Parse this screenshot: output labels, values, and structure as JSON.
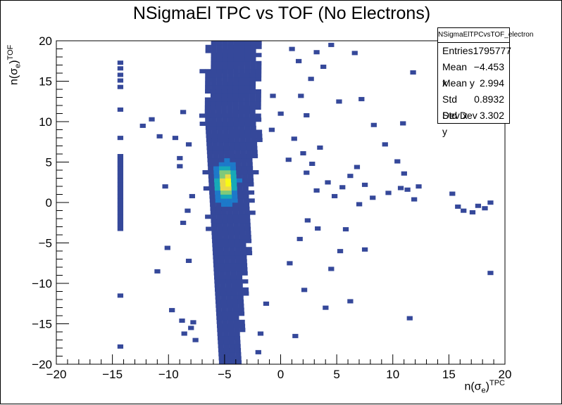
{
  "title": "NSigmaEl TPC vs TOF (No Electrons)",
  "xlabel": "n(σ_e)^TPC",
  "ylabel": "n(σ_e)^TOF",
  "stats": {
    "name": "NSigmaElTPCvsTOF_electron",
    "rows": [
      {
        "label": "Entries",
        "value": "1795777"
      },
      {
        "label": "Mean x",
        "value": "−4.453"
      },
      {
        "label": "Mean y",
        "value": "2.994"
      },
      {
        "label": "Std Dev x",
        "value": "0.8932"
      },
      {
        "label": "Std Dev y",
        "value": "3.302"
      }
    ]
  },
  "chart_data": {
    "type": "heatmap",
    "title": "NSigmaEl TPC vs TOF (No Electrons)",
    "xlabel": "n(σ_e)^TPC",
    "ylabel": "n(σ_e)^TOF",
    "xlim": [
      -20,
      20
    ],
    "ylim": [
      -20,
      20
    ],
    "x_ticks": [
      "−20",
      "−15",
      "−10",
      "−5",
      "0",
      "5",
      "10",
      "15",
      "20"
    ],
    "y_ticks": [
      "−20",
      "−15",
      "−10",
      "−5",
      "0",
      "5",
      "10",
      "15",
      "20"
    ],
    "colormap": [
      "#35489a",
      "#1d79c9",
      "#17a9b8",
      "#7fc97a",
      "#e9d84a",
      "#f9fa14"
    ],
    "entries": 1795777,
    "mean_x": -4.453,
    "mean_y": 2.994,
    "std_x": 0.8932,
    "std_y": 3.302,
    "core": {
      "x": -4.85,
      "y": 2.4,
      "sx": 0.55,
      "sy": 1.4
    },
    "band": {
      "xmin": -7.0,
      "xmax": -2.3,
      "ymin": -20,
      "ymax": 20
    },
    "isolated_column": {
      "x": -14.3,
      "ymin": -3.5,
      "ymax": 5.8,
      "width": 0.5
    },
    "outliers": [
      [
        -14.3,
        17.3
      ],
      [
        -14.3,
        16.6
      ],
      [
        -14.3,
        15.8
      ],
      [
        -14.3,
        15.1
      ],
      [
        -14.3,
        14.3
      ],
      [
        -14.3,
        11.5
      ],
      [
        -14.3,
        8.0
      ],
      [
        -14.3,
        -11.5
      ],
      [
        -14.3,
        -17.8
      ],
      [
        -10.8,
        8.2
      ],
      [
        -12.3,
        9.5
      ],
      [
        -9.4,
        8.0
      ],
      [
        -8.2,
        7.2
      ],
      [
        -9.0,
        5.5
      ],
      [
        -10.3,
        2.0
      ],
      [
        -11.0,
        -8.5
      ],
      [
        -9.7,
        -13.3
      ],
      [
        -8.8,
        -14.6
      ],
      [
        -8.0,
        -15.5
      ],
      [
        -7.8,
        -14.8
      ],
      [
        -8.2,
        -7.2
      ],
      [
        -8.7,
        -2.5
      ],
      [
        -9.0,
        4.5
      ],
      [
        -7.9,
        0.8
      ],
      [
        -8.3,
        -1.0
      ],
      [
        -10.1,
        -5.6
      ],
      [
        -8.6,
        -16.2
      ],
      [
        -7.6,
        -17.0
      ],
      [
        -11.5,
        10.3
      ],
      [
        -8.7,
        11.2
      ],
      [
        -0.7,
        13.2
      ],
      [
        0.0,
        11.0
      ],
      [
        -0.8,
        9.0
      ],
      [
        1.2,
        7.9
      ],
      [
        2.0,
        6.1
      ],
      [
        2.8,
        4.8
      ],
      [
        3.5,
        6.8
      ],
      [
        0.7,
        5.3
      ],
      [
        2.3,
        3.7
      ],
      [
        4.2,
        2.5
      ],
      [
        3.2,
        1.5
      ],
      [
        4.8,
        0.8
      ],
      [
        5.5,
        1.9
      ],
      [
        6.2,
        3.3
      ],
      [
        7.5,
        2.2
      ],
      [
        8.2,
        0.6
      ],
      [
        7.0,
        -0.2
      ],
      [
        9.6,
        1.2
      ],
      [
        10.7,
        1.8
      ],
      [
        11.3,
        1.6
      ],
      [
        11.9,
        0.4
      ],
      [
        12.3,
        2.0
      ],
      [
        15.3,
        1.1
      ],
      [
        15.8,
        -0.5
      ],
      [
        16.3,
        -1.0
      ],
      [
        17.1,
        -1.2
      ],
      [
        17.6,
        -0.4
      ],
      [
        18.2,
        -0.7
      ],
      [
        18.7,
        0.0
      ],
      [
        18.7,
        -8.7
      ],
      [
        11.5,
        -14.3
      ],
      [
        6.2,
        -12.2
      ],
      [
        7.5,
        -5.8
      ],
      [
        4.5,
        -8.2
      ],
      [
        2.1,
        -10.8
      ],
      [
        1.3,
        -16.5
      ],
      [
        0.8,
        -7.5
      ],
      [
        1.7,
        -4.5
      ],
      [
        2.4,
        -2.2
      ],
      [
        3.3,
        -3.2
      ],
      [
        5.3,
        -6.0
      ],
      [
        5.8,
        -3.3
      ],
      [
        4.0,
        -13.0
      ],
      [
        2.7,
        15.3
      ],
      [
        3.2,
        18.6
      ],
      [
        4.5,
        19.5
      ],
      [
        3.8,
        16.8
      ],
      [
        1.8,
        13.2
      ],
      [
        2.3,
        10.8
      ],
      [
        5.2,
        12.5
      ],
      [
        6.6,
        18.5
      ],
      [
        7.2,
        12.8
      ],
      [
        9.3,
        7.2
      ],
      [
        10.4,
        5.1
      ],
      [
        11.0,
        3.6
      ],
      [
        6.8,
        4.4
      ],
      [
        8.3,
        9.6
      ],
      [
        1.0,
        19.0
      ],
      [
        1.6,
        17.5
      ],
      [
        -1.3,
        -12.5
      ],
      [
        -1.8,
        -16.2
      ],
      [
        -2.0,
        -18.5
      ],
      [
        10.9,
        9.8
      ],
      [
        11.8,
        16.1
      ]
    ]
  }
}
